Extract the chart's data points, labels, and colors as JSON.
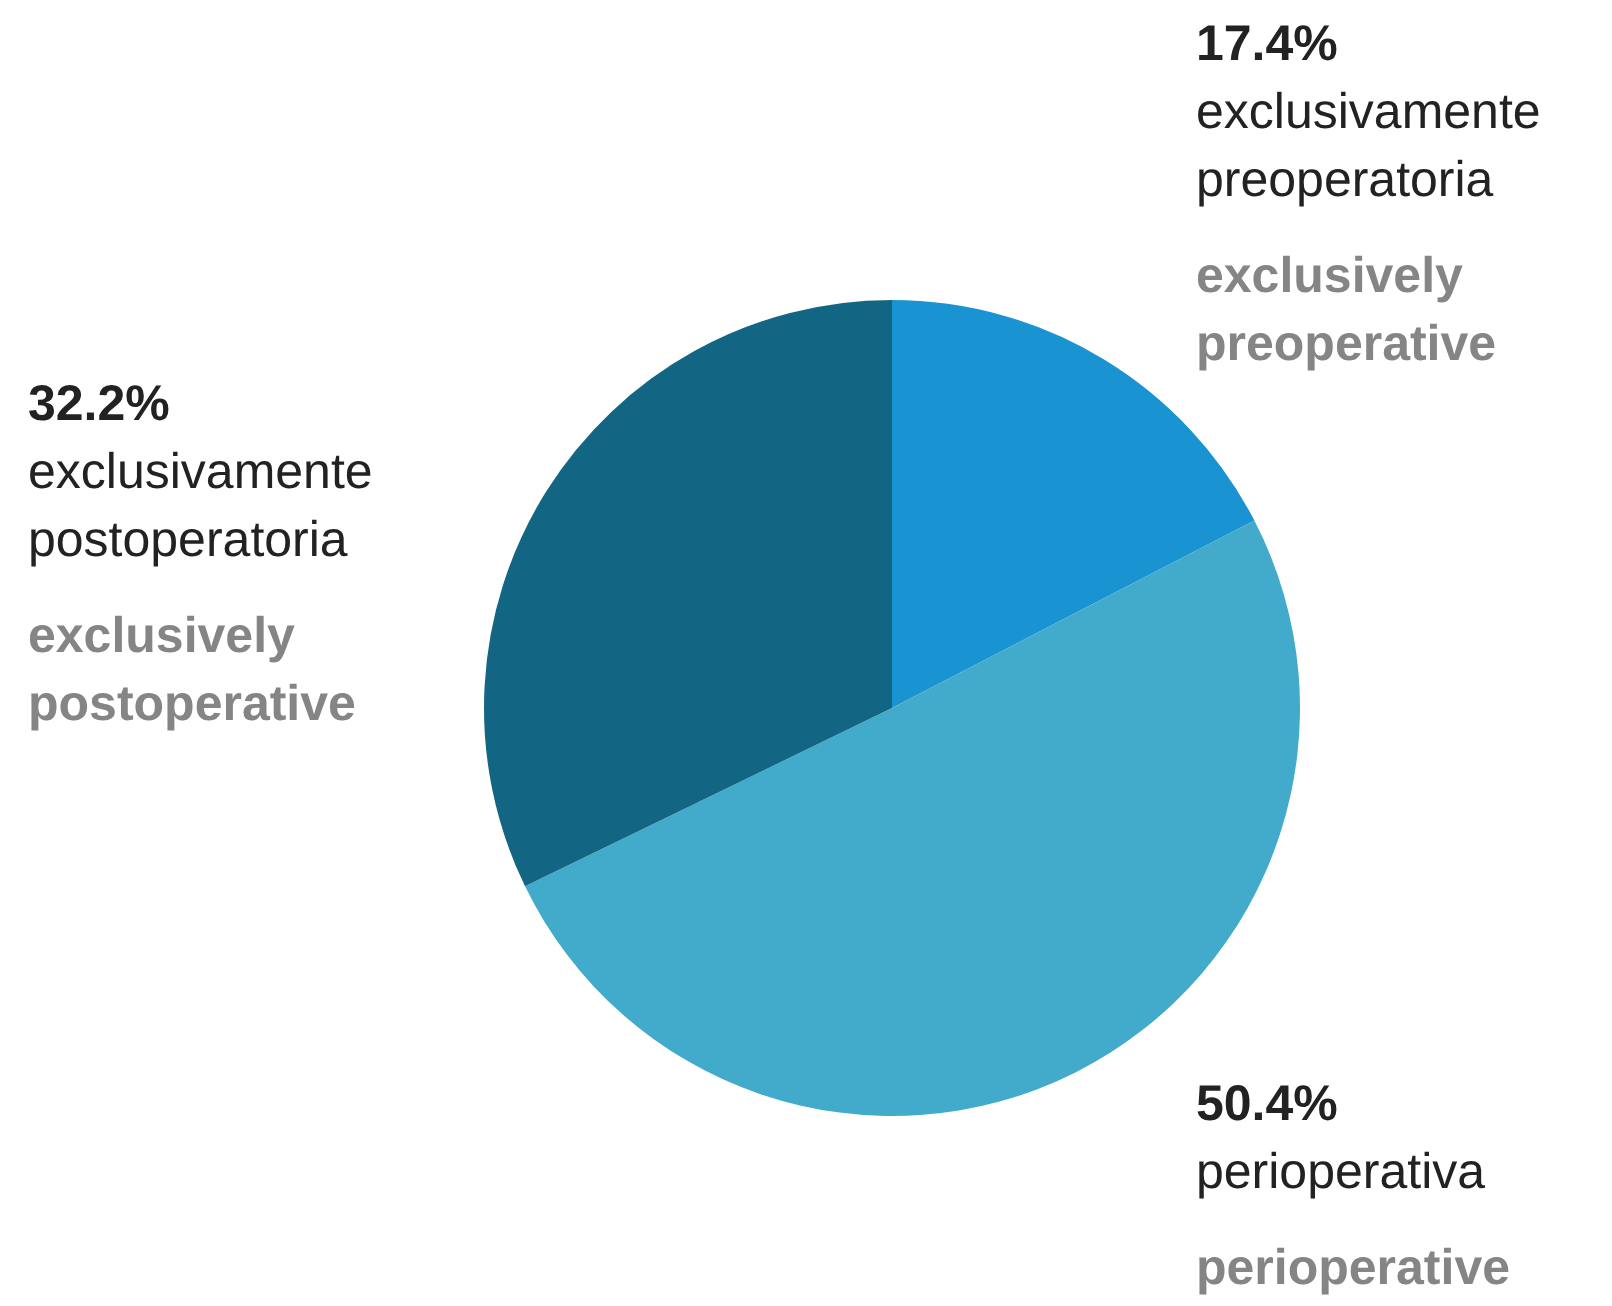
{
  "chart_data": {
    "type": "pie",
    "categories": [
      "exclusivamente preoperatoria",
      "perioperativa",
      "exclusivamente postoperatoria"
    ],
    "values": [
      17.4,
      50.4,
      32.2
    ],
    "colors": [
      "#1a93d3",
      "#42aacb",
      "#136683"
    ],
    "value_labels": [
      "17.4%",
      "50.4%",
      "32.2%"
    ],
    "annotations": [
      "exclusively preoperative",
      "perioperative",
      "exclusively postoperative"
    ],
    "legend": false
  }
}
